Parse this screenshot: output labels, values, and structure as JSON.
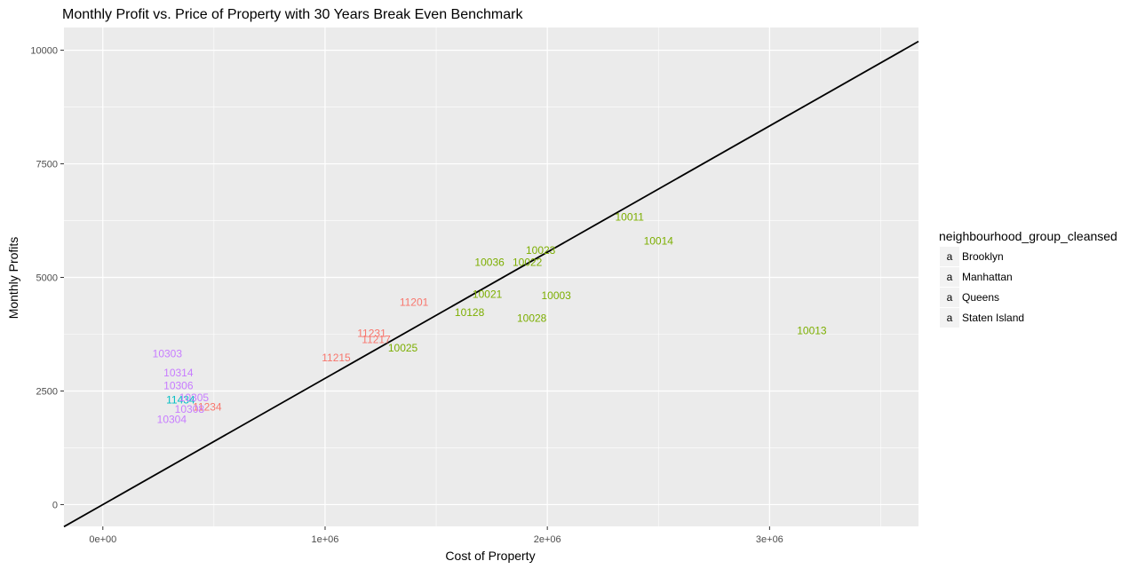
{
  "chart_data": {
    "type": "scatter",
    "title": "Monthly Profit vs. Price of Property with 30 Years Break Even Benchmark",
    "xlabel": "Cost of Property",
    "ylabel": "Monthly Profits",
    "xlim": [
      -175000,
      3670000
    ],
    "ylim": [
      -480,
      10500
    ],
    "x_ticks": [
      {
        "value": 0,
        "label": "0e+00"
      },
      {
        "value": 1000000,
        "label": "1e+06"
      },
      {
        "value": 2000000,
        "label": "2e+06"
      },
      {
        "value": 3000000,
        "label": "3e+06"
      }
    ],
    "y_ticks": [
      {
        "value": 0,
        "label": "0"
      },
      {
        "value": 2500,
        "label": "2500"
      },
      {
        "value": 5000,
        "label": "5000"
      },
      {
        "value": 7500,
        "label": "7500"
      },
      {
        "value": 10000,
        "label": "10000"
      }
    ],
    "grid": true,
    "background": "#ebebeb",
    "benchmark_line": {
      "slope": 0.0027778,
      "intercept": 0,
      "color": "#000000"
    },
    "legend": {
      "title": "neighbourhood_group_cleansed",
      "placement": "right",
      "glyph": "a",
      "entries": [
        {
          "name": "Brooklyn",
          "color": "#F8766D"
        },
        {
          "name": "Manhattan",
          "color": "#7CAE00"
        },
        {
          "name": "Queens",
          "color": "#00BFC4"
        },
        {
          "name": "Staten Island",
          "color": "#C77CFF"
        }
      ]
    },
    "series": [
      {
        "name": "Brooklyn",
        "color": "#F8766D",
        "points": [
          {
            "label": "11201",
            "x": 1400000,
            "y": 4450
          },
          {
            "label": "11231",
            "x": 1210000,
            "y": 3770
          },
          {
            "label": "11217",
            "x": 1230000,
            "y": 3630
          },
          {
            "label": "11215",
            "x": 1050000,
            "y": 3230
          },
          {
            "label": "11234",
            "x": 470000,
            "y": 2150
          }
        ]
      },
      {
        "name": "Manhattan",
        "color": "#7CAE00",
        "points": [
          {
            "label": "10011",
            "x": 2370000,
            "y": 6330
          },
          {
            "label": "10014",
            "x": 2500000,
            "y": 5800
          },
          {
            "label": "10023",
            "x": 1970000,
            "y": 5600
          },
          {
            "label": "10036",
            "x": 1740000,
            "y": 5330
          },
          {
            "label": "10022",
            "x": 1910000,
            "y": 5330
          },
          {
            "label": "10021",
            "x": 1730000,
            "y": 4630
          },
          {
            "label": "10003",
            "x": 2040000,
            "y": 4600
          },
          {
            "label": "10128",
            "x": 1650000,
            "y": 4230
          },
          {
            "label": "10028",
            "x": 1930000,
            "y": 4100
          },
          {
            "label": "10025",
            "x": 1350000,
            "y": 3450
          },
          {
            "label": "10013",
            "x": 3190000,
            "y": 3830
          }
        ]
      },
      {
        "name": "Queens",
        "color": "#00BFC4",
        "points": [
          {
            "label": "11434",
            "x": 350000,
            "y": 2300
          }
        ]
      },
      {
        "name": "Staten Island",
        "color": "#C77CFF",
        "points": [
          {
            "label": "10303",
            "x": 290000,
            "y": 3320
          },
          {
            "label": "10314",
            "x": 340000,
            "y": 2900
          },
          {
            "label": "10306",
            "x": 340000,
            "y": 2620
          },
          {
            "label": "10305",
            "x": 410000,
            "y": 2350
          },
          {
            "label": "10308",
            "x": 390000,
            "y": 2100
          },
          {
            "label": "10304",
            "x": 310000,
            "y": 1870
          }
        ]
      }
    ]
  }
}
